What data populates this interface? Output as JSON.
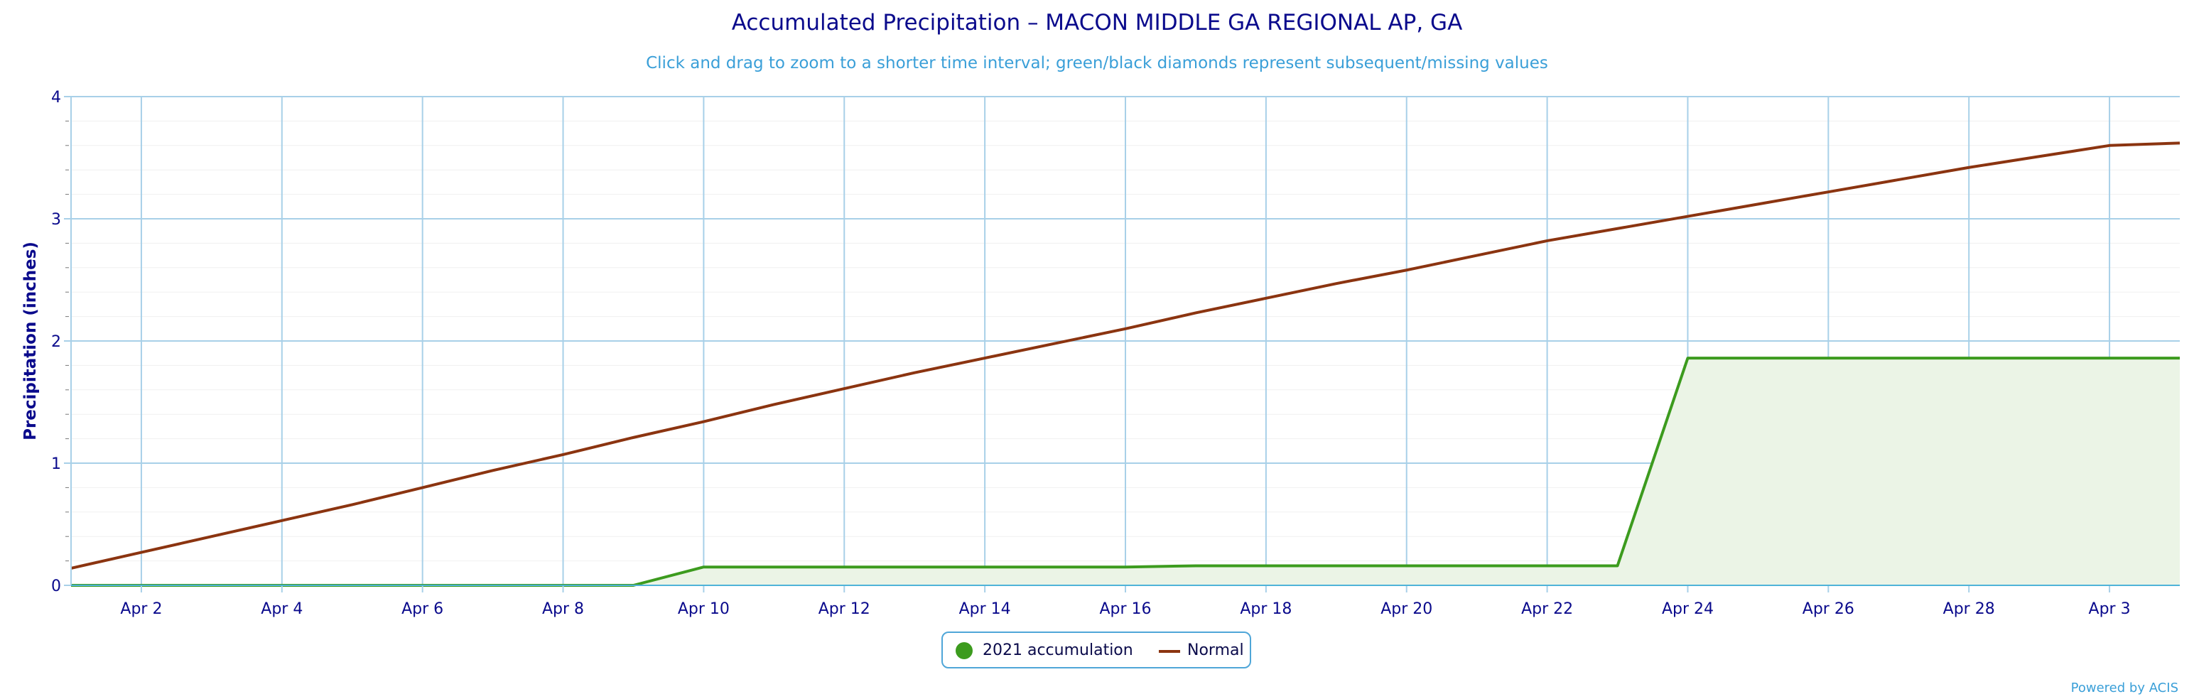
{
  "chart_data": {
    "type": "area",
    "title": "Accumulated Precipitation – MACON MIDDLE GA REGIONAL AP, GA",
    "subtitle": "Click and drag to zoom to a shorter time interval; green/black diamonds represent subsequent/missing values",
    "ylabel": "Precipitation (inches)",
    "xlabel": "",
    "ylim": [
      0,
      4
    ],
    "yticks": [
      0,
      1,
      2,
      3,
      4
    ],
    "xlim": [
      1,
      31
    ],
    "xticks": [
      2,
      4,
      6,
      8,
      10,
      12,
      14,
      16,
      18,
      20,
      22,
      24,
      26,
      28,
      30
    ],
    "xtick_labels": [
      "Apr 2",
      "Apr 4",
      "Apr 6",
      "Apr 8",
      "Apr 10",
      "Apr 12",
      "Apr 14",
      "Apr 16",
      "Apr 18",
      "Apr 20",
      "Apr 22",
      "Apr 24",
      "Apr 26",
      "Apr 28",
      "Apr 3"
    ],
    "grid": true,
    "legend_position": "bottom-center",
    "series": [
      {
        "name": "2021 accumulation",
        "color": "#3c9b1e",
        "fill": "#ebf4e6",
        "x": [
          1,
          2,
          3,
          4,
          5,
          6,
          7,
          8,
          9,
          10,
          11,
          12,
          13,
          14,
          15,
          16,
          17,
          18,
          19,
          20,
          21,
          22,
          23,
          24,
          25,
          26,
          27,
          28,
          29,
          30,
          31
        ],
        "values": [
          0,
          0,
          0,
          0,
          0,
          0,
          0,
          0,
          0,
          0.15,
          0.15,
          0.15,
          0.15,
          0.15,
          0.15,
          0.15,
          0.16,
          0.16,
          0.16,
          0.16,
          0.16,
          0.16,
          0.16,
          1.86,
          1.86,
          1.86,
          1.86,
          1.86,
          1.86,
          1.86,
          1.86
        ]
      },
      {
        "name": "Normal",
        "color": "#8b3410",
        "x": [
          1,
          2,
          3,
          4,
          5,
          6,
          7,
          8,
          9,
          10,
          11,
          12,
          13,
          14,
          15,
          16,
          17,
          18,
          19,
          20,
          21,
          22,
          23,
          24,
          25,
          26,
          27,
          28,
          29,
          30,
          31
        ],
        "values": [
          0.14,
          0.27,
          0.4,
          0.53,
          0.66,
          0.8,
          0.94,
          1.07,
          1.21,
          1.34,
          1.48,
          1.61,
          1.74,
          1.86,
          1.98,
          2.1,
          2.23,
          2.35,
          2.47,
          2.58,
          2.7,
          2.82,
          2.92,
          3.02,
          3.12,
          3.22,
          3.32,
          3.42,
          3.51,
          3.6,
          3.62
        ]
      }
    ]
  },
  "legend": {
    "item1": "2021 accumulation",
    "item2": "Normal"
  },
  "credits": "Powered by ACIS"
}
